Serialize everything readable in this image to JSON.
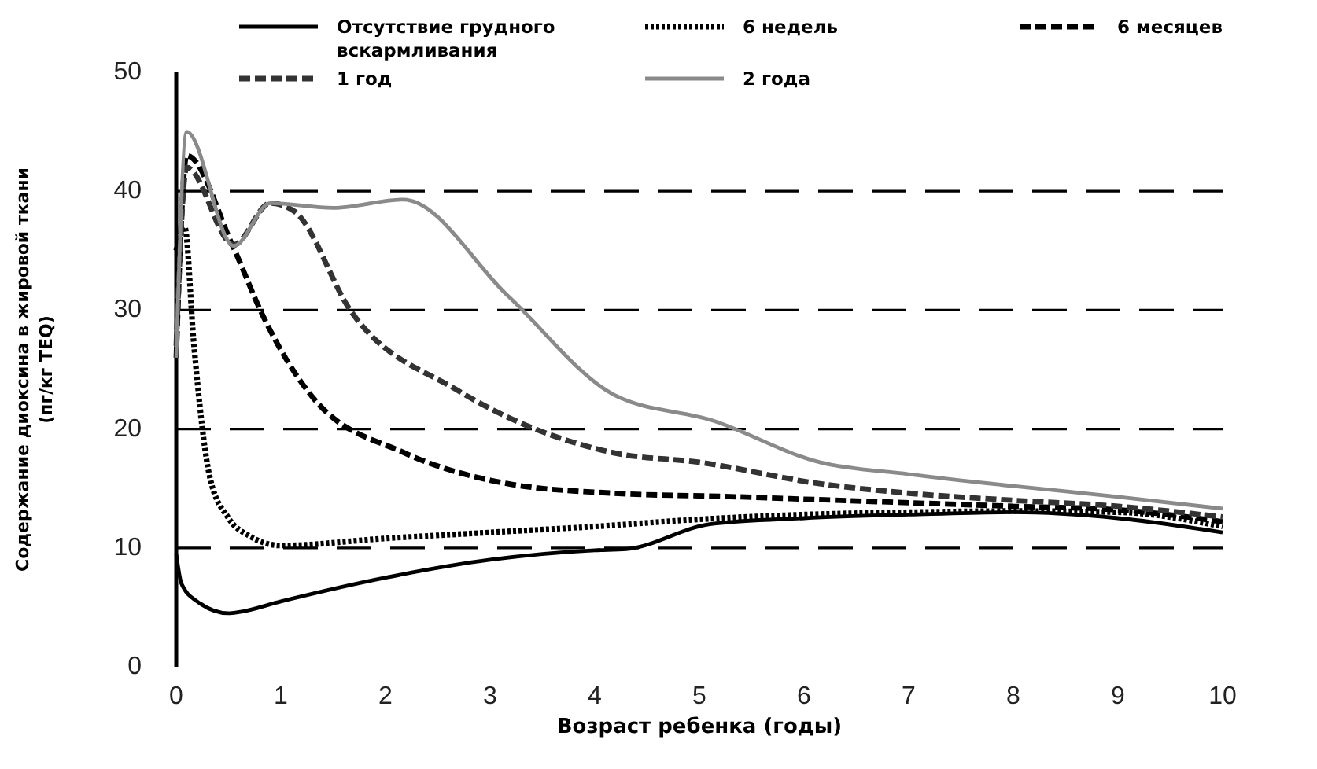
{
  "chart_data": {
    "type": "line",
    "xlabel": "Возраст ребенка (годы)",
    "ylabel": "Содержание диоксина в жировой ткани\n(пг/кг TEQ)",
    "xlim": [
      0,
      10
    ],
    "ylim": [
      0,
      50
    ],
    "xticks": [
      0,
      1,
      2,
      3,
      4,
      5,
      6,
      7,
      8,
      9,
      10
    ],
    "yticks": [
      0,
      10,
      20,
      30,
      40,
      50
    ],
    "grid": "y",
    "legend": "top",
    "marker": "none",
    "series": [
      {
        "name": "Отсутствие грудного вскармливания",
        "color": "#000000",
        "line_style": "solid",
        "x": [
          0,
          0.05,
          0.2,
          0.5,
          0.6,
          1,
          2,
          3,
          4,
          4.3,
          5.1,
          6,
          7,
          8,
          9,
          10
        ],
        "values": [
          9.5,
          7,
          5.5,
          4.5,
          4.6,
          5.5,
          7.5,
          9,
          9.8,
          9.9,
          12,
          12.5,
          12.8,
          13,
          12.5,
          11.3
        ]
      },
      {
        "name": "6 недель",
        "color": "#000000",
        "line_style": "dotted",
        "x": [
          0,
          0.08,
          0.17,
          0.32,
          0.5,
          0.7,
          1,
          2,
          3,
          4,
          5,
          6,
          7,
          8,
          9,
          10
        ],
        "values": [
          35,
          37,
          27,
          16,
          12.5,
          11,
          10.2,
          10.8,
          11.3,
          11.8,
          12.4,
          12.8,
          13,
          13.1,
          13,
          11.8
        ]
      },
      {
        "name": "6 месяцев",
        "color": "#000000",
        "line_style": "dashed",
        "x": [
          0,
          0.1,
          0.54,
          0.83,
          1.32,
          2.18,
          3.17,
          4.18,
          5.35,
          6,
          7,
          8,
          9,
          10
        ],
        "values": [
          26,
          43,
          35.4,
          29.5,
          22.5,
          18,
          15.4,
          14.6,
          14.3,
          14.1,
          13.8,
          13.5,
          13.2,
          12.2
        ]
      },
      {
        "name": "1 год",
        "color": "#333333",
        "line_style": "dashed",
        "x": [
          0,
          0.1,
          0.55,
          0.9,
          1.13,
          1.67,
          2.68,
          4.18,
          5,
          6.15,
          7,
          8,
          9,
          10
        ],
        "values": [
          27,
          42,
          35.5,
          39,
          38.3,
          29.9,
          23.3,
          18,
          17.2,
          15.4,
          14.6,
          14,
          13.5,
          12.6
        ]
      },
      {
        "name": "2 года",
        "color": "#8a8a8a",
        "line_style": "solid",
        "x": [
          0,
          0.1,
          0.55,
          0.9,
          1.5,
          2.17,
          3.17,
          4.18,
          5.13,
          6.15,
          7,
          8,
          9,
          10
        ],
        "values": [
          26,
          45,
          35.4,
          39,
          38.6,
          39.3,
          31.2,
          22.9,
          20.7,
          17.2,
          16.2,
          15.2,
          14.3,
          13.3
        ]
      }
    ]
  }
}
